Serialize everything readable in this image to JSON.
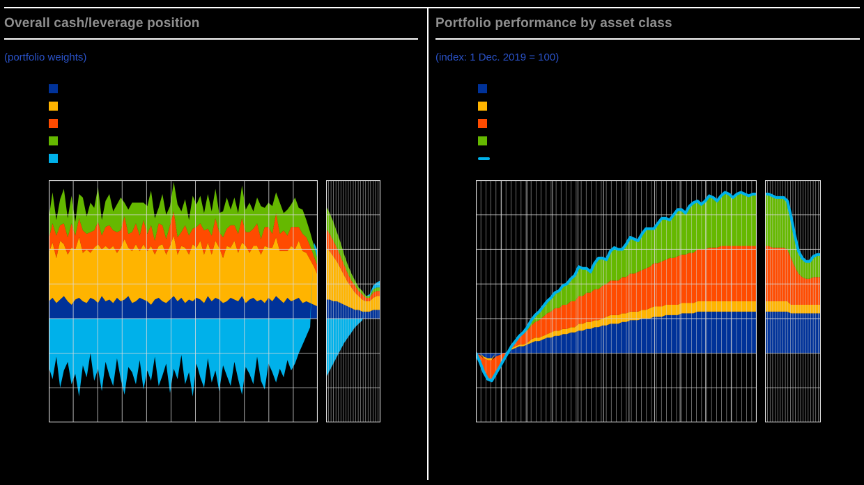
{
  "colors": {
    "background": "#000000",
    "title_text": "#8f8f8f",
    "subtitle_text": "#2a52c8",
    "rule": "#ffffff",
    "grid": "#d9d9d9",
    "palette": {
      "dark_blue": "#003299",
      "gold": "#FFB400",
      "orange": "#FF4B00",
      "green": "#65B800",
      "cyan": "#00B1EA"
    }
  },
  "chart_data": [
    {
      "type": "area",
      "stacked": true,
      "title": "Overall cash/leverage position",
      "subtitle": "(portfolio weights)",
      "legend": [
        {
          "marker": "square",
          "color": "#003299",
          "label": ""
        },
        {
          "marker": "square",
          "color": "#FFB400",
          "label": ""
        },
        {
          "marker": "square",
          "color": "#FF4B00",
          "label": ""
        },
        {
          "marker": "square",
          "color": "#65B800",
          "label": ""
        },
        {
          "marker": "square",
          "color": "#00B1EA",
          "label": ""
        }
      ],
      "main": {
        "ylim": [
          -60,
          80
        ],
        "y_step": 20,
        "baseline": 0,
        "x_major": 11,
        "x_minor": 0,
        "series": [
          {
            "name": "series-dark-blue",
            "color": "#003299",
            "values": [
              10,
              12,
              9,
              11,
              13,
              10,
              8,
              11,
              12,
              10,
              9,
              12,
              11,
              9,
              13,
              10,
              11,
              9,
              12,
              10,
              11,
              13,
              9,
              10,
              12,
              11,
              10,
              8,
              11,
              12,
              10,
              9,
              11,
              13,
              10,
              12,
              9,
              11,
              10,
              12,
              11,
              9,
              13,
              10,
              12,
              11,
              9,
              10,
              12,
              11,
              10,
              13,
              9,
              11,
              12,
              10,
              11,
              9,
              12,
              10,
              13,
              11,
              9,
              12,
              10,
              11,
              12,
              9,
              10,
              9,
              8,
              7
            ]
          },
          {
            "name": "series-gold",
            "color": "#FFB400",
            "values": [
              28,
              32,
              26,
              34,
              30,
              27,
              33,
              29,
              35,
              28,
              31,
              26,
              30,
              34,
              27,
              32,
              29,
              33,
              26,
              31,
              35,
              28,
              30,
              33,
              27,
              32,
              29,
              34,
              26,
              30,
              33,
              28,
              31,
              35,
              27,
              30,
              32,
              26,
              33,
              29,
              34,
              28,
              31,
              27,
              33,
              30,
              26,
              32,
              29,
              34,
              28,
              31,
              33,
              27,
              30,
              32,
              26,
              33,
              29,
              31,
              34,
              28,
              30,
              27,
              32,
              29,
              33,
              30,
              28,
              25,
              22,
              18
            ]
          },
          {
            "name": "series-orange",
            "color": "#FF4B00",
            "values": [
              8,
              11,
              13,
              9,
              12,
              10,
              14,
              8,
              11,
              13,
              9,
              12,
              10,
              13,
              8,
              11,
              14,
              9,
              12,
              10,
              13,
              8,
              11,
              12,
              9,
              14,
              10,
              12,
              8,
              13,
              11,
              9,
              12,
              14,
              10,
              8,
              13,
              11,
              9,
              12,
              10,
              14,
              8,
              11,
              13,
              9,
              12,
              10,
              13,
              9,
              11,
              14,
              8,
              12,
              10,
              13,
              9,
              11,
              12,
              8,
              14,
              10,
              12,
              9,
              11,
              13,
              8,
              10,
              9,
              8,
              6,
              5
            ]
          },
          {
            "name": "series-green",
            "color": "#65B800",
            "values": [
              12,
              18,
              9,
              15,
              20,
              11,
              16,
              8,
              14,
              19,
              10,
              17,
              13,
              20,
              9,
              15,
              18,
              11,
              16,
              19,
              8,
              14,
              17,
              12,
              19,
              10,
              16,
              20,
              13,
              9,
              18,
              14,
              11,
              17,
              19,
              12,
              15,
              9,
              19,
              13,
              16,
              10,
              20,
              14,
              17,
              11,
              15,
              18,
              9,
              16,
              12,
              19,
              13,
              17,
              10,
              15,
              19,
              11,
              14,
              16,
              12,
              18,
              10,
              15,
              13,
              17,
              11,
              14,
              10,
              8,
              6,
              4
            ]
          },
          {
            "name": "series-cyan",
            "color": "#00B1EA",
            "values": [
              -28,
              -35,
              -22,
              -40,
              -30,
              -25,
              -38,
              -32,
              -45,
              -27,
              -34,
              -20,
              -36,
              -29,
              -42,
              -25,
              -33,
              -39,
              -23,
              -35,
              -44,
              -28,
              -31,
              -38,
              -24,
              -41,
              -30,
              -36,
              -22,
              -39,
              -33,
              -26,
              -43,
              -29,
              -35,
              -21,
              -38,
              -31,
              -45,
              -26,
              -34,
              -40,
              -23,
              -37,
              -30,
              -42,
              -27,
              -33,
              -39,
              -25,
              -35,
              -44,
              -28,
              -32,
              -38,
              -22,
              -36,
              -41,
              -26,
              -31,
              -37,
              -29,
              -34,
              -24,
              -30,
              -26,
              -20,
              -15,
              -10,
              -5,
              2,
              5
            ]
          }
        ]
      },
      "mini": {
        "ylim": [
          -60,
          80
        ],
        "y_step": 20,
        "baseline": 0,
        "x_major": 1,
        "x_minor": 21,
        "series": [
          {
            "name": "series-dark-blue",
            "color": "#003299",
            "values": [
              11,
              11,
              10,
              10,
              9,
              8,
              7,
              6,
              5,
              5,
              4,
              4,
              4,
              5,
              5,
              5
            ]
          },
          {
            "name": "series-gold",
            "color": "#FFB400",
            "values": [
              30,
              28,
              26,
              23,
              20,
              17,
              14,
              12,
              10,
              8,
              7,
              6,
              6,
              7,
              8,
              8
            ]
          },
          {
            "name": "series-orange",
            "color": "#FF4B00",
            "values": [
              11,
              10,
              9,
              8,
              7,
              6,
              5,
              4,
              4,
              3,
              3,
              2,
              2,
              3,
              3,
              3
            ]
          },
          {
            "name": "series-green",
            "color": "#65B800",
            "values": [
              13,
              12,
              11,
              9,
              8,
              6,
              5,
              4,
              3,
              2,
              2,
              1,
              1,
              2,
              2,
              2
            ]
          },
          {
            "name": "series-cyan",
            "color": "#00B1EA",
            "values": [
              -34,
              -30,
              -26,
              -22,
              -18,
              -14,
              -11,
              -8,
              -5,
              -3,
              -1,
              0,
              1,
              2,
              3,
              4
            ]
          }
        ]
      }
    },
    {
      "type": "area",
      "stacked": true,
      "title": "Portfolio performance by asset class",
      "subtitle": "(index: 1 Dec. 2019 = 100)",
      "legend": [
        {
          "marker": "square",
          "color": "#003299",
          "label": ""
        },
        {
          "marker": "square",
          "color": "#FFB400",
          "label": ""
        },
        {
          "marker": "square",
          "color": "#FF4B00",
          "label": ""
        },
        {
          "marker": "square",
          "color": "#65B800",
          "label": ""
        },
        {
          "marker": "line",
          "color": "#00B1EA",
          "label": ""
        }
      ],
      "main": {
        "ylim": [
          60,
          200
        ],
        "y_step": 20,
        "baseline": 100,
        "x_major": 11,
        "x_minor": 55,
        "total_line": {
          "color": "#00B1EA",
          "width": 4
        },
        "series": [
          {
            "name": "series-dark-blue",
            "color": "#003299",
            "values": [
              0,
              -1,
              -2,
              -3,
              -3,
              -2,
              -1,
              0,
              1,
              2,
              3,
              4,
              4,
              5,
              6,
              7,
              7,
              8,
              9,
              9,
              10,
              10,
              11,
              11,
              12,
              12,
              13,
              13,
              14,
              14,
              15,
              15,
              16,
              16,
              17,
              17,
              17,
              18,
              18,
              19,
              19,
              19,
              20,
              20,
              20,
              21,
              21,
              21,
              22,
              22,
              22,
              22,
              23,
              23,
              23,
              23,
              24,
              24,
              24,
              24,
              24,
              24,
              24,
              24,
              24,
              24,
              24,
              24,
              24,
              24,
              24,
              24
            ]
          },
          {
            "name": "series-gold",
            "color": "#FFB400",
            "values": [
              0,
              0,
              -1,
              -1,
              -1,
              0,
              0,
              0,
              0,
              1,
              1,
              1,
              1,
              1,
              2,
              2,
              2,
              2,
              2,
              3,
              3,
              3,
              3,
              3,
              3,
              3,
              4,
              4,
              4,
              4,
              4,
              4,
              4,
              5,
              5,
              5,
              5,
              5,
              5,
              5,
              5,
              5,
              5,
              5,
              6,
              6,
              6,
              6,
              6,
              6,
              6,
              6,
              6,
              6,
              6,
              6,
              6,
              6,
              6,
              6,
              6,
              6,
              6,
              6,
              6,
              6,
              6,
              6,
              6,
              6,
              6,
              6
            ]
          },
          {
            "name": "series-orange",
            "color": "#FF4B00",
            "values": [
              0,
              -4,
              -8,
              -11,
              -12,
              -10,
              -7,
              -4,
              -1,
              1,
              3,
              4,
              6,
              7,
              8,
              9,
              10,
              11,
              12,
              12,
              13,
              13,
              14,
              14,
              15,
              15,
              16,
              16,
              17,
              17,
              18,
              18,
              19,
              19,
              20,
              20,
              20,
              21,
              21,
              22,
              22,
              23,
              23,
              24,
              24,
              25,
              25,
              26,
              26,
              27,
              27,
              28,
              28,
              28,
              29,
              29,
              30,
              30,
              30,
              31,
              31,
              31,
              32,
              32,
              32,
              32,
              32,
              32,
              32,
              32,
              32,
              32
            ]
          },
          {
            "name": "series-green",
            "color": "#65B800",
            "values": [
              0,
              0,
              0,
              0,
              0,
              0,
              0,
              0,
              0,
              0,
              0,
              1,
              1,
              2,
              3,
              4,
              5,
              6,
              7,
              8,
              9,
              10,
              11,
              12,
              13,
              15,
              17,
              16,
              14,
              12,
              15,
              18,
              16,
              14,
              17,
              19,
              18,
              16,
              19,
              21,
              20,
              18,
              21,
              23,
              22,
              20,
              23,
              25,
              24,
              22,
              25,
              27,
              26,
              24,
              27,
              29,
              28,
              26,
              28,
              30,
              29,
              27,
              29,
              31,
              30,
              28,
              30,
              31,
              30,
              29,
              30,
              30
            ]
          }
        ]
      },
      "mini": {
        "ylim": [
          60,
          200
        ],
        "y_step": 20,
        "baseline": 100,
        "x_major": 1,
        "x_minor": 21,
        "total_line": {
          "color": "#00B1EA",
          "width": 4
        },
        "series": [
          {
            "name": "series-dark-blue",
            "color": "#003299",
            "values": [
              24,
              24,
              24,
              24,
              24,
              24,
              24,
              23,
              23,
              23,
              23,
              23,
              23,
              23,
              23,
              23
            ]
          },
          {
            "name": "series-gold",
            "color": "#FFB400",
            "values": [
              6,
              6,
              6,
              6,
              6,
              6,
              6,
              5,
              5,
              5,
              5,
              5,
              5,
              5,
              5,
              5
            ]
          },
          {
            "name": "series-orange",
            "color": "#FF4B00",
            "values": [
              32,
              32,
              31,
              31,
              31,
              31,
              30,
              27,
              22,
              18,
              16,
              15,
              15,
              16,
              16,
              16
            ]
          },
          {
            "name": "series-green",
            "color": "#65B800",
            "values": [
              30,
              30,
              30,
              29,
              29,
              29,
              28,
              24,
              18,
              13,
              11,
              10,
              10,
              12,
              13,
              13
            ]
          }
        ]
      }
    }
  ]
}
